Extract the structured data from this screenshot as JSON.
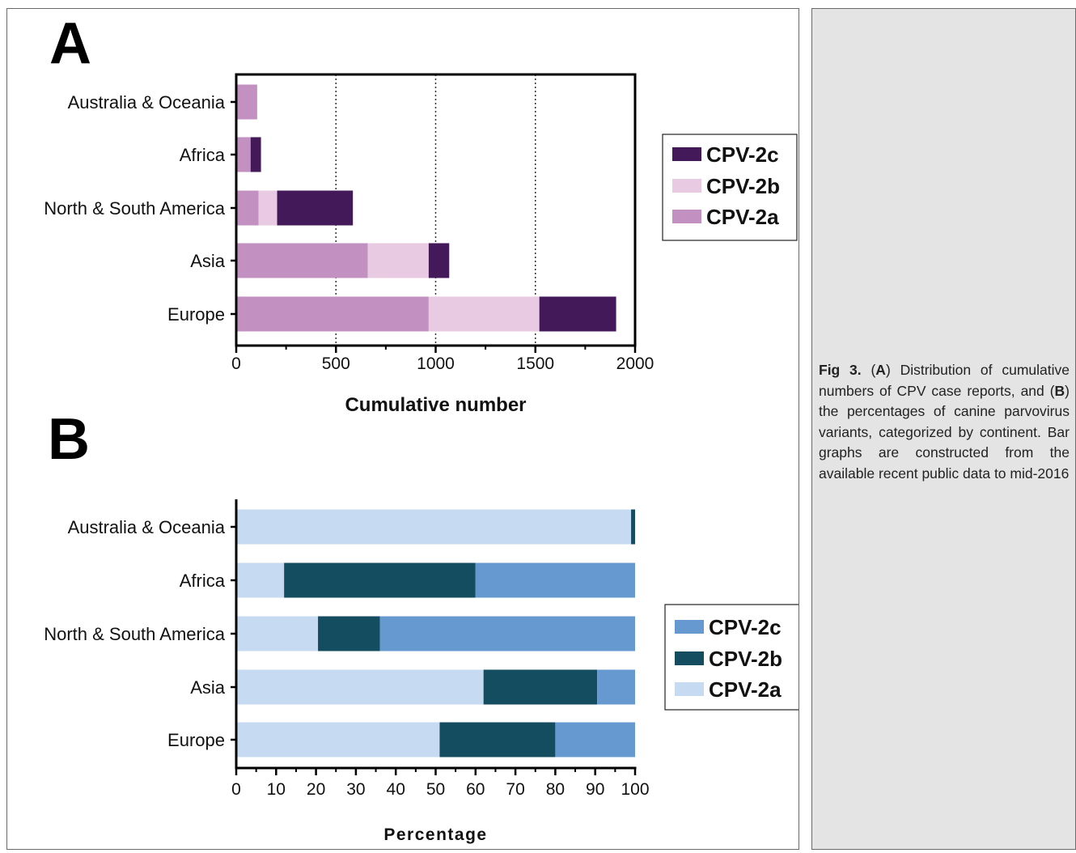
{
  "chart_data": [
    {
      "panel_label": "A",
      "type": "bar",
      "orientation": "horizontal",
      "stacked": true,
      "categories": [
        "Australia & Oceania",
        "Africa",
        "North & South America",
        "Asia",
        "Europe"
      ],
      "series": [
        {
          "name": "CPV-2a",
          "color": "#c291c2",
          "values": [
            105,
            72,
            112,
            660,
            965
          ]
        },
        {
          "name": "CPV-2b",
          "color": "#e8cae2",
          "values": [
            0,
            0,
            93,
            305,
            555
          ]
        },
        {
          "name": "CPV-2c",
          "color": "#44195a",
          "values": [
            0,
            52,
            380,
            103,
            385
          ]
        }
      ],
      "xlabel": "Cumulative number",
      "xlim": [
        0,
        2000
      ],
      "xticks": [
        "0",
        "500",
        "1000",
        "1500",
        "2000"
      ],
      "grid": "vertical dotted at 500, 1000, 1500",
      "legend": {
        "position": "right",
        "entries": [
          "CPV-2c",
          "CPV-2b",
          "CPV-2a"
        ]
      }
    },
    {
      "panel_label": "B",
      "type": "bar",
      "orientation": "horizontal",
      "stacked": true,
      "categories": [
        "Australia & Oceania",
        "Africa",
        "North & South America",
        "Asia",
        "Europe"
      ],
      "series": [
        {
          "name": "CPV-2a",
          "color": "#c6dbf1",
          "values": [
            99,
            12,
            20.5,
            62,
            51
          ]
        },
        {
          "name": "CPV-2b",
          "color": "#144c60",
          "values": [
            1,
            48,
            15.5,
            28.5,
            29
          ]
        },
        {
          "name": "CPV-2c",
          "color": "#6799d1",
          "values": [
            0,
            40,
            64,
            9.5,
            20
          ]
        }
      ],
      "xlabel": "Percentage",
      "xlim": [
        0,
        100
      ],
      "xticks": [
        "0",
        "10",
        "20",
        "30",
        "40",
        "50",
        "60",
        "70",
        "80",
        "90",
        "100"
      ],
      "grid": "none",
      "legend": {
        "position": "right",
        "entries": [
          "CPV-2c",
          "CPV-2b",
          "CPV-2a"
        ]
      }
    }
  ],
  "caption": {
    "fig_label": "Fig 3.",
    "part1": " (",
    "a": "A",
    "part2": ") Distribution of cumulative numbers of CPV case reports, and (",
    "b": "B",
    "part3": ") the percentages of canine parvovirus variants, categorized by continent. Bar graphs are constructed from the available recent public data to mid-2016"
  }
}
